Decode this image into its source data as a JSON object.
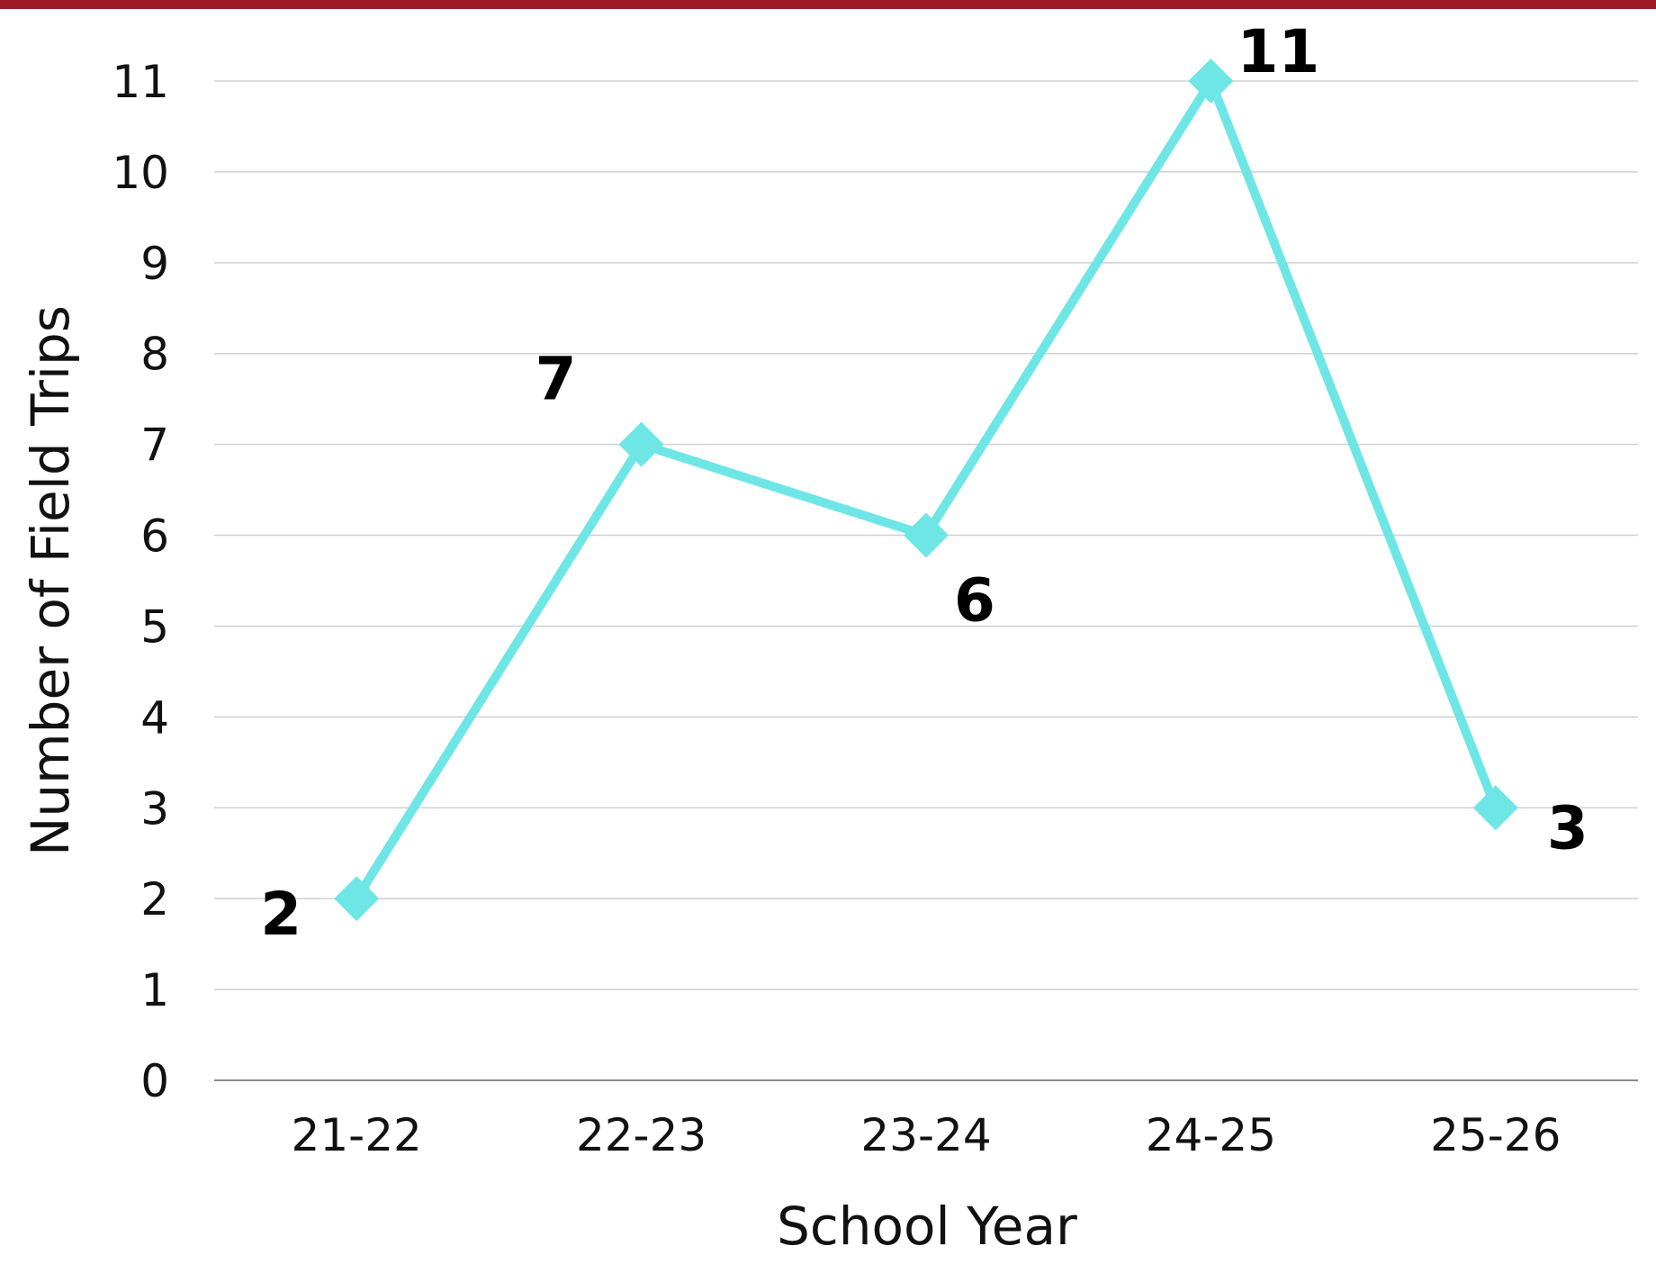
{
  "chart_data": {
    "type": "line",
    "categories": [
      "21-22",
      "22-23",
      "23-24",
      "24-25",
      "25-26"
    ],
    "series": [
      {
        "values": [
          2,
          7,
          6,
          11,
          3
        ]
      }
    ],
    "data_labels": [
      "2",
      "7",
      "6",
      "11",
      "3"
    ],
    "xlabel": "School Year",
    "ylabel": "Number of Field Trips",
    "ylim": [
      0,
      11
    ],
    "yticks": [
      0,
      1,
      2,
      3,
      4,
      5,
      6,
      7,
      8,
      9,
      10,
      11
    ],
    "grid": true,
    "legend": "none",
    "marker": "diamond",
    "line_color": "#6ee6e6",
    "top_bar_color": "#9b1a24"
  }
}
